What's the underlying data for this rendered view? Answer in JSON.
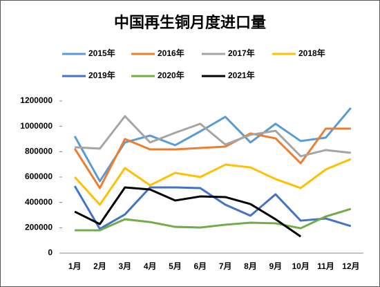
{
  "chart_data": {
    "type": "line",
    "title": "中国再生铜月度进口量",
    "categories": [
      "1月",
      "2月",
      "3月",
      "4月",
      "5月",
      "6月",
      "7月",
      "8月",
      "9月",
      "10月",
      "11月",
      "12月"
    ],
    "ylim": [
      0,
      1200000
    ],
    "yticks": [
      0,
      200000,
      400000,
      600000,
      800000,
      1000000,
      1200000
    ],
    "series": [
      {
        "name": "2015年",
        "color": "#5b9bd5",
        "values": [
          922000,
          567000,
          873000,
          927000,
          851000,
          960000,
          1075000,
          873000,
          1020000,
          884000,
          911000,
          1145000
        ]
      },
      {
        "name": "2016年",
        "color": "#ed7d31",
        "values": [
          824000,
          513000,
          900000,
          818000,
          818000,
          829000,
          840000,
          944000,
          905000,
          709000,
          982000,
          982000
        ]
      },
      {
        "name": "2017年",
        "color": "#a5a5a5",
        "values": [
          835000,
          824000,
          1080000,
          873000,
          949000,
          1020000,
          856000,
          933000,
          965000,
          764000,
          813000,
          791000
        ]
      },
      {
        "name": "2018年",
        "color": "#ffc000",
        "values": [
          600000,
          382000,
          671000,
          535000,
          633000,
          600000,
          698000,
          676000,
          584000,
          513000,
          660000,
          742000
        ]
      },
      {
        "name": "2019年",
        "color": "#4472c4",
        "values": [
          529000,
          191000,
          305000,
          518000,
          518000,
          513000,
          382000,
          295000,
          464000,
          256000,
          273000,
          213000
        ]
      },
      {
        "name": "2020年",
        "color": "#70ad47",
        "values": [
          180000,
          180000,
          267000,
          245000,
          207000,
          202000,
          224000,
          240000,
          235000,
          196000,
          289000,
          349000
        ]
      },
      {
        "name": "2021年",
        "color": "#000000",
        "values": [
          327000,
          229000,
          518000,
          502000,
          415000,
          447000,
          442000,
          387000,
          267000,
          131000,
          null,
          null
        ]
      }
    ]
  }
}
